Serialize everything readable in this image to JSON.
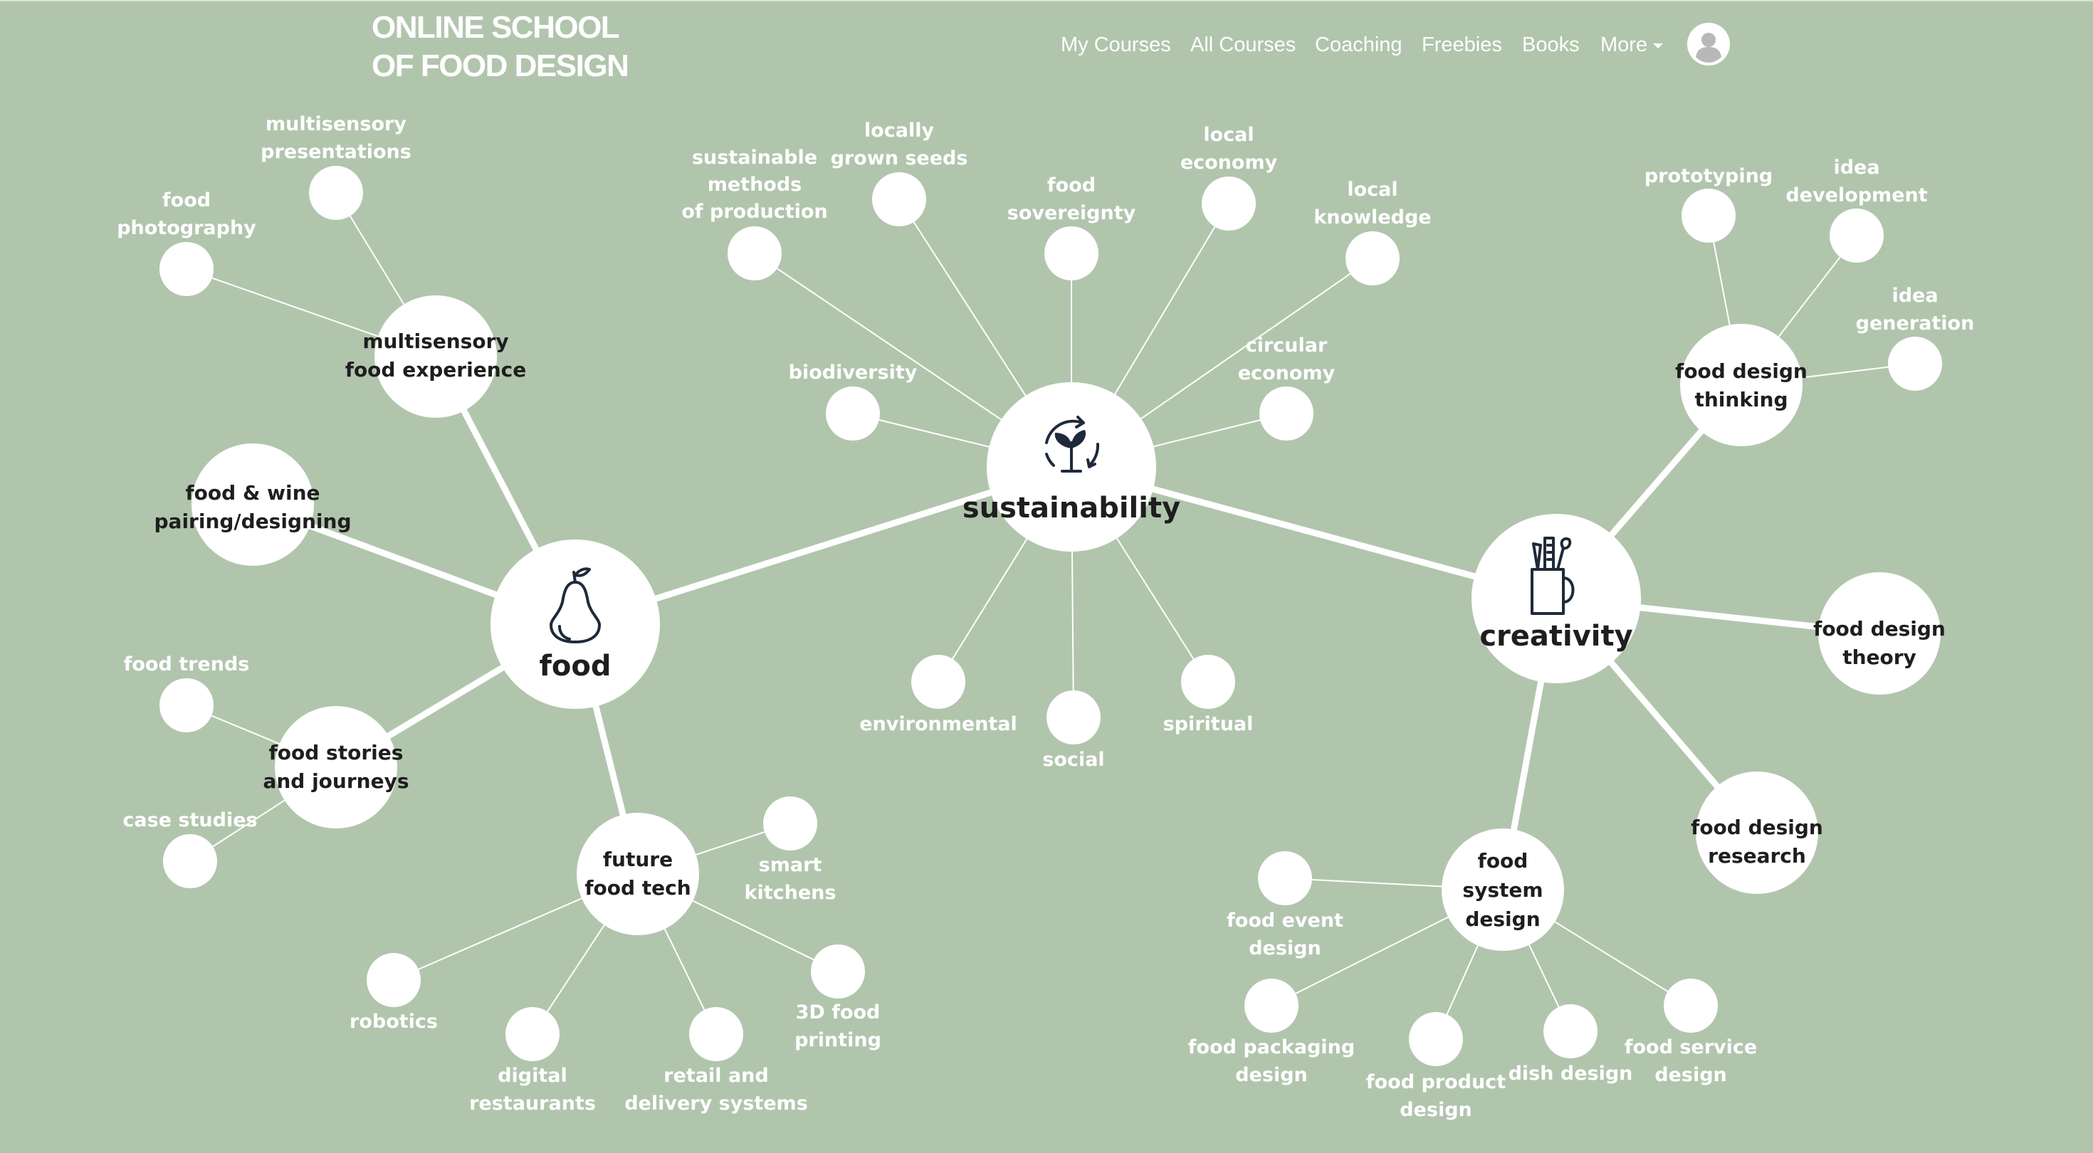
{
  "header": {
    "logo_line1": "ONLINE SCHOOL",
    "logo_line2": "OF FOOD DESIGN",
    "nav": [
      "My Courses",
      "All Courses",
      "Coaching",
      "Freebies",
      "Books",
      "More"
    ]
  },
  "colors": {
    "background": "#b1c5ad",
    "node": "#ffffff",
    "hub_text": "#1e1e1e",
    "leaf_text": "#ffffff"
  },
  "mindmap": {
    "hubs": [
      {
        "id": "food",
        "label": "food",
        "icon": "pear-icon"
      },
      {
        "id": "sustainability",
        "label": "sustainability",
        "icon": "plant-cycle-icon"
      },
      {
        "id": "creativity",
        "label": "creativity",
        "icon": "pencil-cup-icon"
      }
    ],
    "subs": [
      {
        "id": "multisensory-food-experience",
        "lines": [
          "multisensory",
          "food experience"
        ]
      },
      {
        "id": "food-wine-pairing",
        "lines": [
          "food & wine",
          "pairing/designing"
        ]
      },
      {
        "id": "food-stories-journeys",
        "lines": [
          "food stories",
          "and journeys"
        ]
      },
      {
        "id": "future-food-tech",
        "lines": [
          "future",
          "food tech"
        ]
      },
      {
        "id": "food-design-thinking",
        "lines": [
          "food design",
          "thinking"
        ]
      },
      {
        "id": "food-design-theory",
        "lines": [
          "food design",
          "theory"
        ]
      },
      {
        "id": "food-design-research",
        "lines": [
          "food design",
          "research"
        ]
      },
      {
        "id": "food-system-design",
        "lines": [
          "food",
          "system",
          "design"
        ]
      }
    ],
    "leaves": [
      {
        "id": "food-photography",
        "lines": [
          "food",
          "photography"
        ]
      },
      {
        "id": "multisensory-presentations",
        "lines": [
          "multisensory",
          "presentations"
        ]
      },
      {
        "id": "food-trends",
        "lines": [
          "food trends"
        ]
      },
      {
        "id": "case-studies",
        "lines": [
          "case studies"
        ]
      },
      {
        "id": "smart-kitchens",
        "lines": [
          "smart",
          "kitchens"
        ]
      },
      {
        "id": "robotics",
        "lines": [
          "robotics"
        ]
      },
      {
        "id": "digital-restaurants",
        "lines": [
          "digital",
          "restaurants"
        ]
      },
      {
        "id": "retail-delivery",
        "lines": [
          "retail and",
          "delivery systems"
        ]
      },
      {
        "id": "3d-food-printing",
        "lines": [
          "3D food",
          "printing"
        ]
      },
      {
        "id": "sustainable-methods",
        "lines": [
          "sustainable",
          "methods",
          "of production"
        ]
      },
      {
        "id": "locally-grown-seeds",
        "lines": [
          "locally",
          "grown seeds"
        ]
      },
      {
        "id": "food-sovereignty",
        "lines": [
          "food",
          "sovereignty"
        ]
      },
      {
        "id": "local-economy",
        "lines": [
          "local",
          "economy"
        ]
      },
      {
        "id": "local-knowledge",
        "lines": [
          "local",
          "knowledge"
        ]
      },
      {
        "id": "circular-economy",
        "lines": [
          "circular",
          "economy"
        ]
      },
      {
        "id": "biodiversity",
        "lines": [
          "biodiversity"
        ]
      },
      {
        "id": "environmental",
        "lines": [
          "environmental"
        ]
      },
      {
        "id": "social",
        "lines": [
          "social"
        ]
      },
      {
        "id": "spiritual",
        "lines": [
          "spiritual"
        ]
      },
      {
        "id": "prototyping",
        "lines": [
          "prototyping"
        ]
      },
      {
        "id": "idea-development",
        "lines": [
          "idea",
          "development"
        ]
      },
      {
        "id": "idea-generation",
        "lines": [
          "idea",
          "generation"
        ]
      },
      {
        "id": "food-event-design",
        "lines": [
          "food event",
          "design"
        ]
      },
      {
        "id": "food-packaging-design",
        "lines": [
          "food packaging",
          "design"
        ]
      },
      {
        "id": "food-product-design",
        "lines": [
          "food product",
          "design"
        ]
      },
      {
        "id": "dish-design",
        "lines": [
          "dish design"
        ]
      },
      {
        "id": "food-service-design",
        "lines": [
          "food service",
          "design"
        ]
      }
    ]
  }
}
